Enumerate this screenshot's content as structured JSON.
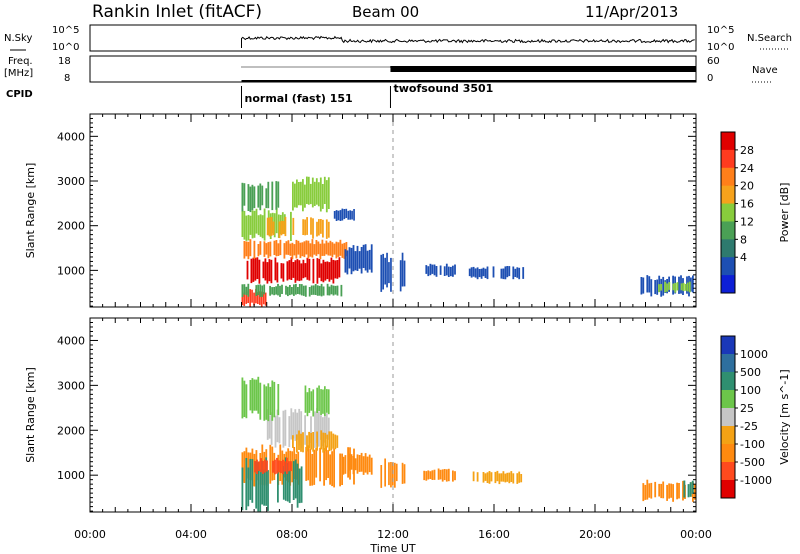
{
  "header": {
    "station": "Rankin Inlet (fitACF)",
    "beam": "Beam 00",
    "date": "11/Apr/2013"
  },
  "status_panels": {
    "nsky": {
      "label": "N.Sky",
      "ticks": [
        "10^5",
        "10^0"
      ]
    },
    "nsearch": {
      "label": "N.Search",
      "ticks": [
        "10^5",
        "10^0"
      ]
    },
    "freq": {
      "label_line1": "Freq.",
      "label_line2": "[MHz]",
      "ticks": [
        "18",
        "8"
      ]
    },
    "nave": {
      "label": "Nave",
      "ticks": [
        "60",
        "0"
      ]
    },
    "cpid": {
      "label": "CPID",
      "modes": [
        {
          "name": "normal (fast) 151",
          "start_hour": 6.0
        },
        {
          "name": "twofsound 3501",
          "start_hour": 11.9
        }
      ]
    }
  },
  "x_axis": {
    "label": "Time UT",
    "ticks": [
      {
        "hour": 0,
        "label": "00:00"
      },
      {
        "hour": 4,
        "label": "04:00"
      },
      {
        "hour": 8,
        "label": "08:00"
      },
      {
        "hour": 12,
        "label": "12:00"
      },
      {
        "hour": 16,
        "label": "16:00"
      },
      {
        "hour": 20,
        "label": "20:00"
      },
      {
        "hour": 24,
        "label": "00:00"
      }
    ]
  },
  "chart_data": [
    {
      "type": "heatmap",
      "name": "power",
      "ylabel": "Slant Range [km]",
      "xlim": [
        0,
        24
      ],
      "ylim": [
        180,
        4500
      ],
      "yticks": [
        1000,
        2000,
        3000,
        4000
      ],
      "colorbar": {
        "label": "Power [dB]",
        "ticks": [
          "28",
          "24",
          "20",
          "16",
          "12",
          "8",
          "4"
        ],
        "colors": [
          "#e00000",
          "#ff3b1f",
          "#ff7f1a",
          "#f6a21c",
          "#88cc3c",
          "#4aa055",
          "#2e7a6e",
          "#1d4fb3",
          "#0d1fd6"
        ]
      },
      "dashed_line_hour": 12.0,
      "patches": [
        {
          "t0": 6.2,
          "t1": 10.0,
          "r0": 700,
          "r1": 1300,
          "color": "#e00000"
        },
        {
          "t0": 6.0,
          "t1": 10.2,
          "r0": 1250,
          "r1": 1700,
          "color": "#ff7f1a"
        },
        {
          "t0": 6.0,
          "t1": 8.0,
          "r0": 1650,
          "r1": 2400,
          "color": "#88cc3c"
        },
        {
          "t0": 6.0,
          "t1": 7.5,
          "r0": 2300,
          "r1": 3000,
          "color": "#4aa055"
        },
        {
          "t0": 7.0,
          "t1": 9.5,
          "r0": 1700,
          "r1": 2200,
          "color": "#f6a21c"
        },
        {
          "t0": 6.0,
          "t1": 7.0,
          "r0": 180,
          "r1": 600,
          "color": "#ff3b1f"
        },
        {
          "t0": 6.0,
          "t1": 10.0,
          "r0": 400,
          "r1": 700,
          "color": "#4aa055"
        },
        {
          "t0": 8.0,
          "t1": 9.5,
          "r0": 2300,
          "r1": 3100,
          "color": "#88cc3c"
        },
        {
          "t0": 9.5,
          "t1": 10.5,
          "r0": 2100,
          "r1": 2400,
          "color": "#1d4fb3"
        },
        {
          "t0": 10.0,
          "t1": 11.2,
          "r0": 900,
          "r1": 1600,
          "color": "#1d4fb3"
        },
        {
          "t0": 11.5,
          "t1": 12.5,
          "r0": 500,
          "r1": 1400,
          "color": "#1d4fb3"
        },
        {
          "t0": 13.2,
          "t1": 14.5,
          "r0": 850,
          "r1": 1150,
          "color": "#1d4fb3"
        },
        {
          "t0": 15.0,
          "t1": 17.2,
          "r0": 800,
          "r1": 1100,
          "color": "#1d4fb3"
        },
        {
          "t0": 21.8,
          "t1": 24.0,
          "r0": 400,
          "r1": 900,
          "color": "#1d4fb3"
        },
        {
          "t0": 22.5,
          "t1": 23.8,
          "r0": 500,
          "r1": 750,
          "color": "#88cc3c"
        }
      ]
    },
    {
      "type": "heatmap",
      "name": "velocity",
      "ylabel": "Slant Range [km]",
      "xlim": [
        0,
        24
      ],
      "ylim": [
        180,
        4500
      ],
      "yticks": [
        1000,
        2000,
        3000,
        4000
      ],
      "colorbar": {
        "label": "Velocity [m s^-1]",
        "ticks": [
          "1000",
          "500",
          "100",
          "25",
          "-25",
          "-100",
          "-500",
          "-1000"
        ],
        "colors": [
          "#1a38b8",
          "#2e6f9e",
          "#2f8f70",
          "#6cc64a",
          "#c6c6c6",
          "#f4a215",
          "#ff8a10",
          "#ff4a1e",
          "#e00000"
        ]
      },
      "dashed_line_hour": 12.0,
      "patches": [
        {
          "t0": 6.0,
          "t1": 10.5,
          "r0": 700,
          "r1": 1700,
          "color": "#ff8a10"
        },
        {
          "t0": 6.0,
          "t1": 8.5,
          "r0": 180,
          "r1": 1400,
          "color": "#2f8f70"
        },
        {
          "t0": 7.0,
          "t1": 9.5,
          "r0": 1600,
          "r1": 2500,
          "color": "#c6c6c6"
        },
        {
          "t0": 6.0,
          "t1": 7.5,
          "r0": 2200,
          "r1": 3200,
          "color": "#6cc64a"
        },
        {
          "t0": 8.0,
          "t1": 10.0,
          "r0": 1500,
          "r1": 2000,
          "color": "#f4a215"
        },
        {
          "t0": 6.5,
          "t1": 8.0,
          "r0": 1000,
          "r1": 1400,
          "color": "#ff4a1e"
        },
        {
          "t0": 8.5,
          "t1": 9.5,
          "r0": 2300,
          "r1": 3000,
          "color": "#6cc64a"
        },
        {
          "t0": 10.0,
          "t1": 11.2,
          "r0": 1000,
          "r1": 1500,
          "color": "#ff8a10"
        },
        {
          "t0": 11.5,
          "t1": 12.5,
          "r0": 700,
          "r1": 1400,
          "color": "#ff8a10"
        },
        {
          "t0": 13.2,
          "t1": 14.5,
          "r0": 850,
          "r1": 1150,
          "color": "#ff8a10"
        },
        {
          "t0": 15.0,
          "t1": 17.2,
          "r0": 800,
          "r1": 1100,
          "color": "#f4a215"
        },
        {
          "t0": 21.8,
          "t1": 24.0,
          "r0": 400,
          "r1": 900,
          "color": "#ff8a10"
        },
        {
          "t0": 23.5,
          "t1": 24.0,
          "r0": 500,
          "r1": 900,
          "color": "#2f8f70"
        }
      ]
    }
  ]
}
